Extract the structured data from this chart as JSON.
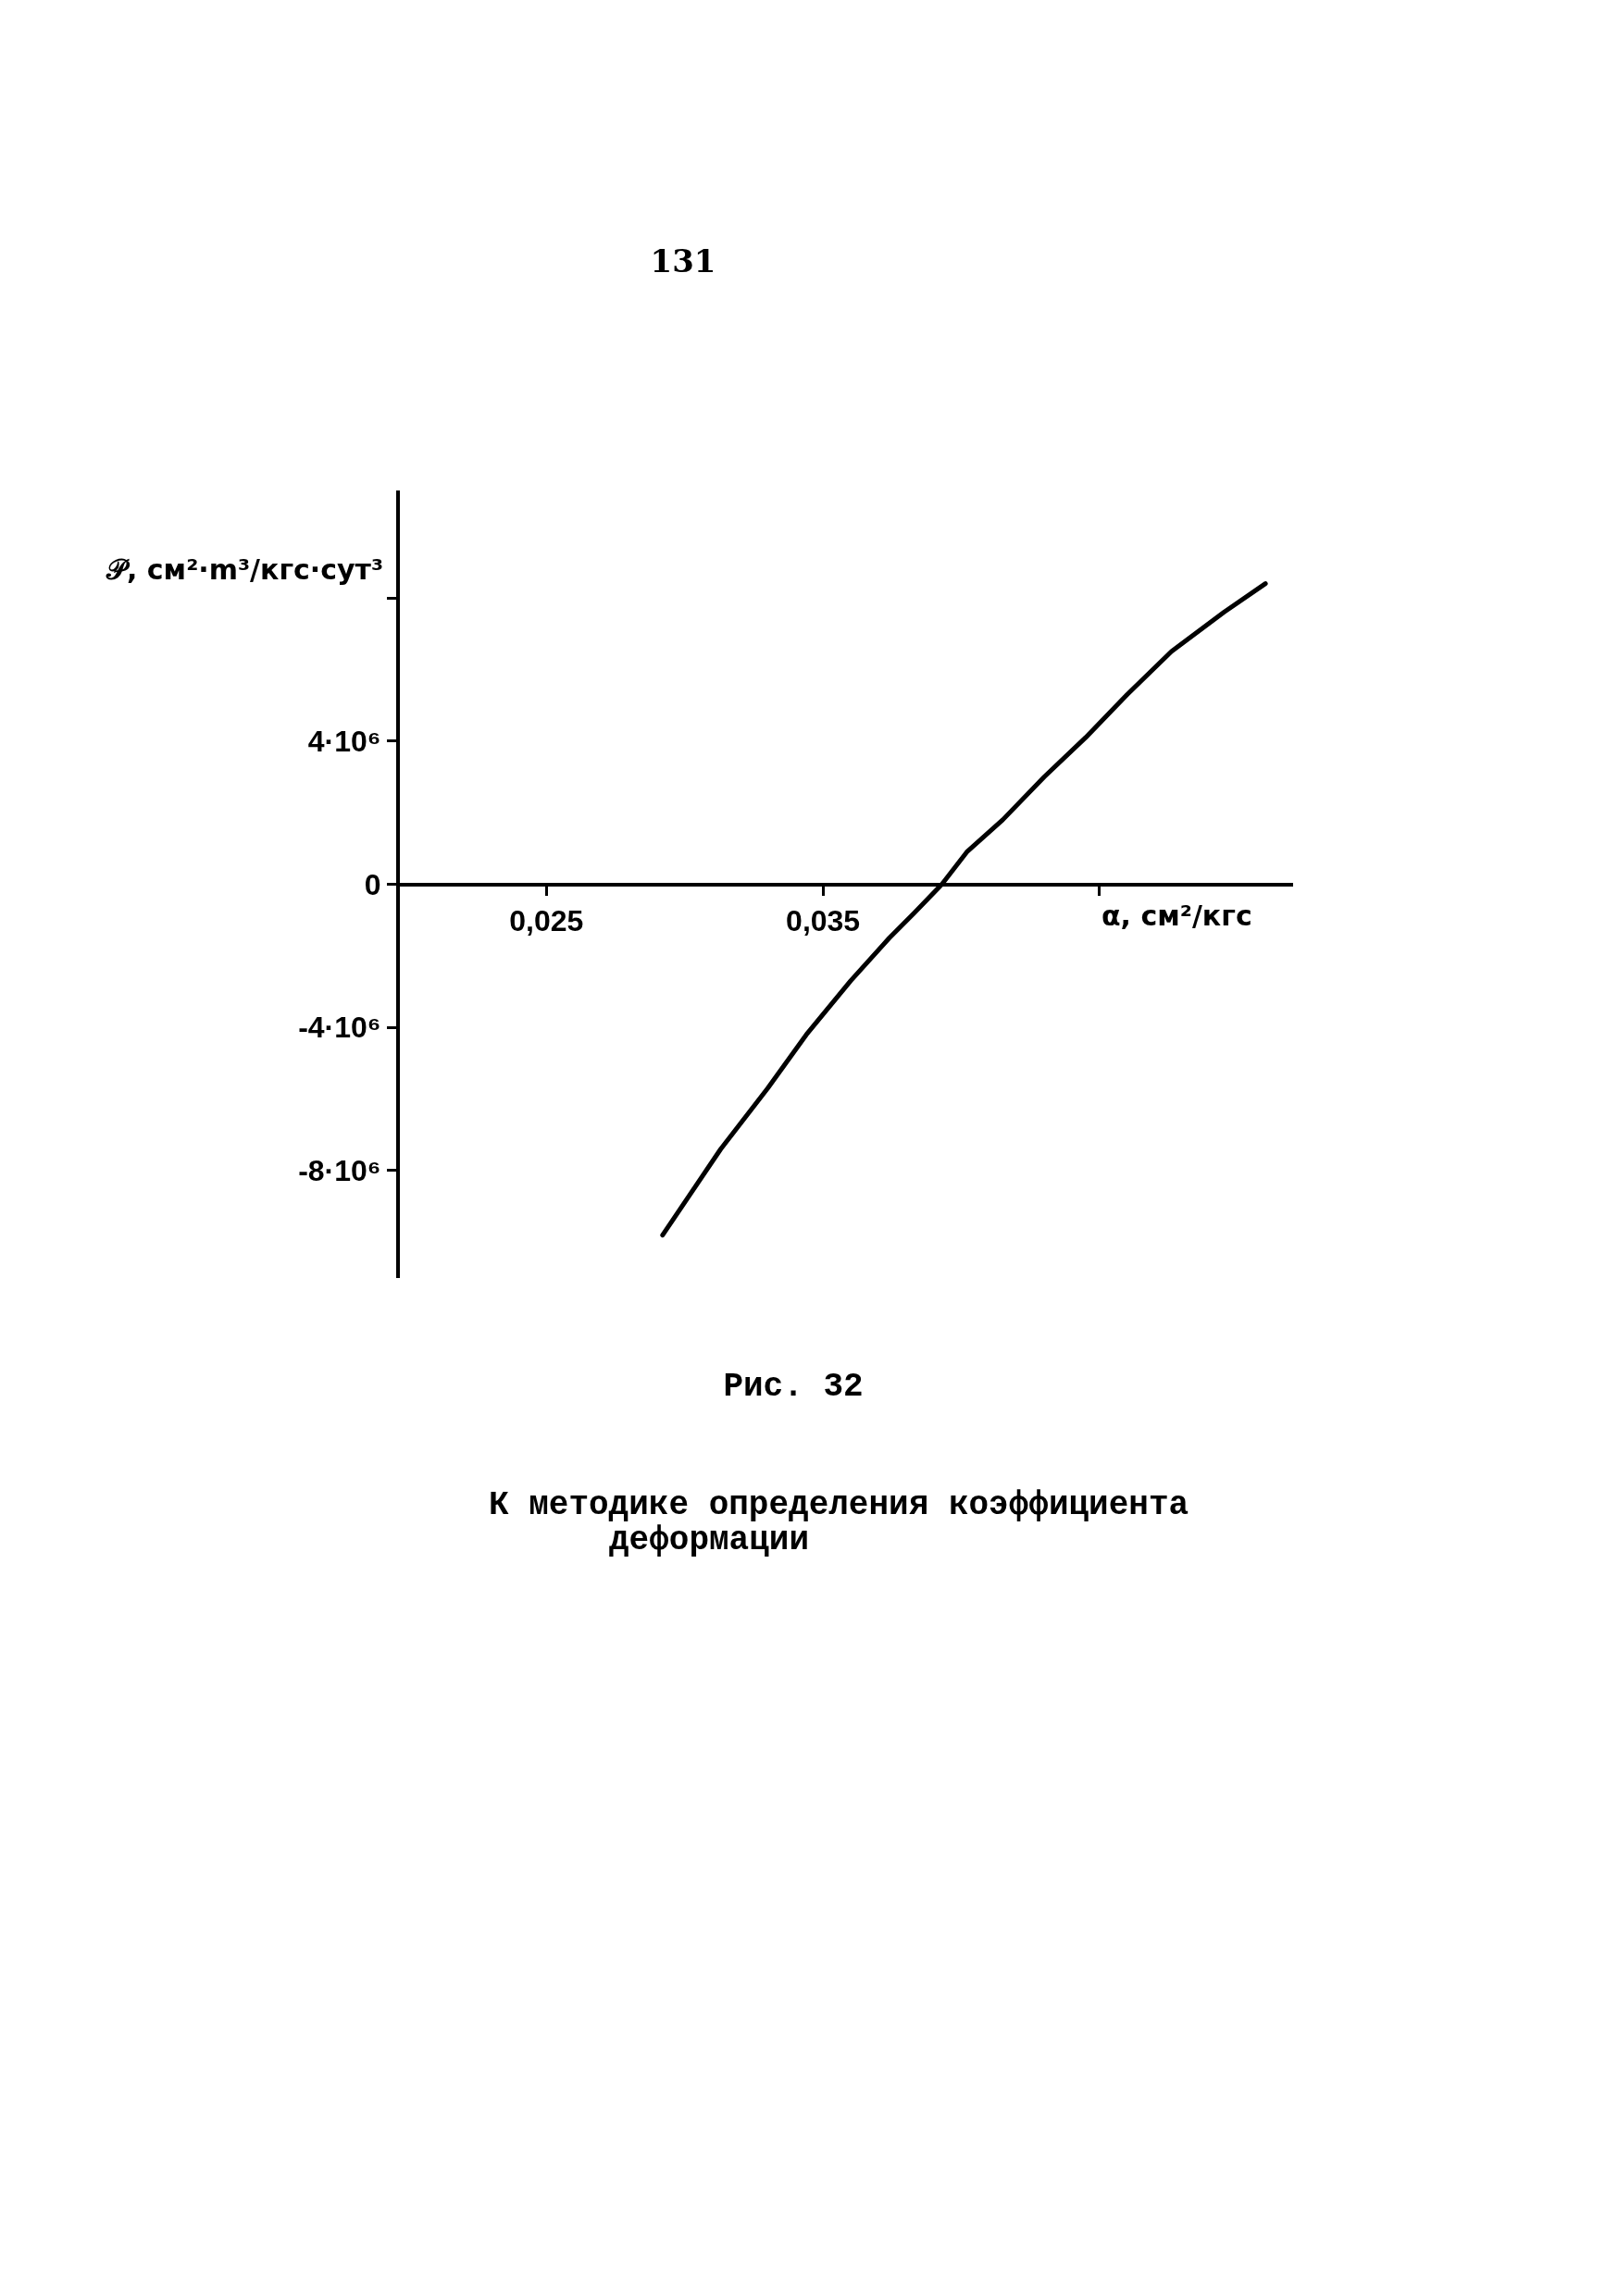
{
  "chart_data": {
    "type": "line",
    "title": "Рис. 32",
    "subtitle": "К методике определения коэффициента деформации",
    "xlabel": "α, см²/кгс",
    "ylabel": "𝒫, см²·m³/кгс·сут³",
    "annotations": [
      "131"
    ],
    "x": [
      0.0292,
      0.0313,
      0.033,
      0.0344,
      0.036,
      0.0374,
      0.0383,
      0.0393,
      0.0402,
      0.0415,
      0.043,
      0.0445,
      0.046,
      0.0476,
      0.0495,
      0.051
    ],
    "values": [
      -9800000,
      -7400000,
      -5700000,
      -4200000,
      -2700000,
      -1500000,
      -800000,
      0,
      900000,
      1800000,
      3000000,
      4100000,
      5300000,
      6500000,
      7600000,
      8400000
    ],
    "color": "#000000",
    "line_style": "solid",
    "xlim": [
      0.0197,
      0.052
    ],
    "ylim": [
      -11000000,
      11000000
    ],
    "xticks": [
      {
        "value": 0.025,
        "label": "0,025"
      },
      {
        "value": 0.035,
        "label": "0,035"
      },
      {
        "value": 0.045,
        "label": null
      }
    ],
    "yticks": [
      {
        "value": -8000000,
        "label": "-8·10⁶"
      },
      {
        "value": -4000000,
        "label": "-4·10⁶"
      },
      0,
      {
        "value": 4000000,
        "label": "4·10⁶"
      },
      {
        "value": 8000000,
        "label": null
      }
    ]
  }
}
